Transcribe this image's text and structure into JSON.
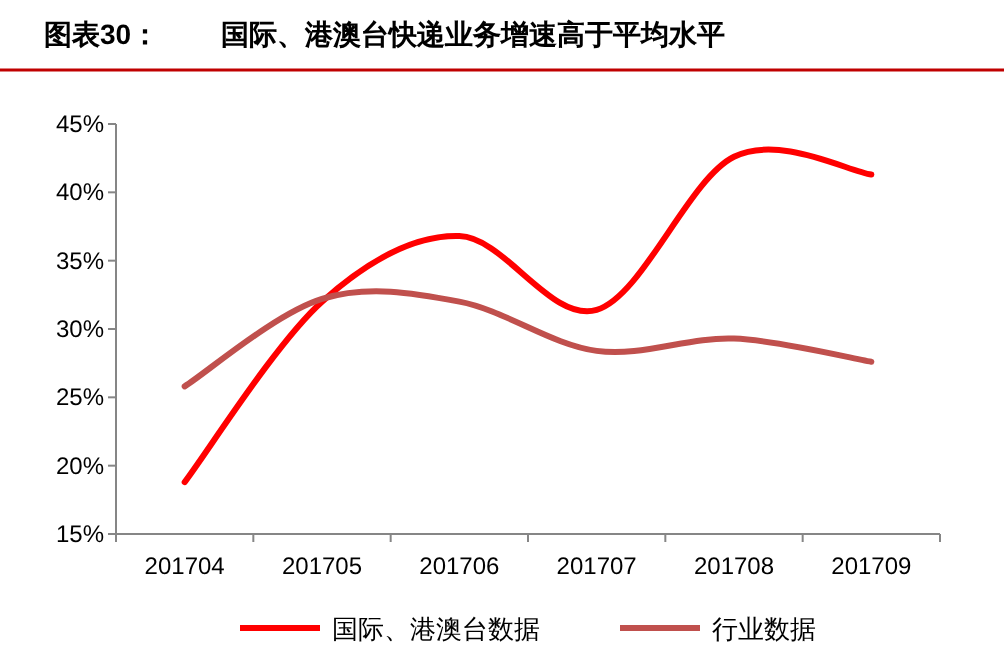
{
  "chart_data": {
    "type": "line",
    "title": "图表30：        国际、港澳台快递业务增速高于平均水平",
    "categories": [
      "201704",
      "201705",
      "201706",
      "201707",
      "201708",
      "201709"
    ],
    "series": [
      {
        "name": "国际、港澳台数据",
        "color": "#ff0000",
        "values": [
          18.8,
          32.0,
          36.8,
          31.4,
          42.6,
          41.3
        ]
      },
      {
        "name": "行业数据",
        "color": "#c0504d",
        "values": [
          25.8,
          32.2,
          32.0,
          28.4,
          29.3,
          27.6
        ]
      }
    ],
    "ylim": [
      15,
      45
    ],
    "yticks": [
      {
        "value": 15,
        "label": "15%"
      },
      {
        "value": 20,
        "label": "20%"
      },
      {
        "value": 25,
        "label": "25%"
      },
      {
        "value": 30,
        "label": "30%"
      },
      {
        "value": 35,
        "label": "35%"
      },
      {
        "value": 40,
        "label": "40%"
      },
      {
        "value": 45,
        "label": "45%"
      }
    ],
    "legend": "bottom",
    "marker": "none",
    "line_style": "solid",
    "grid": false
  }
}
